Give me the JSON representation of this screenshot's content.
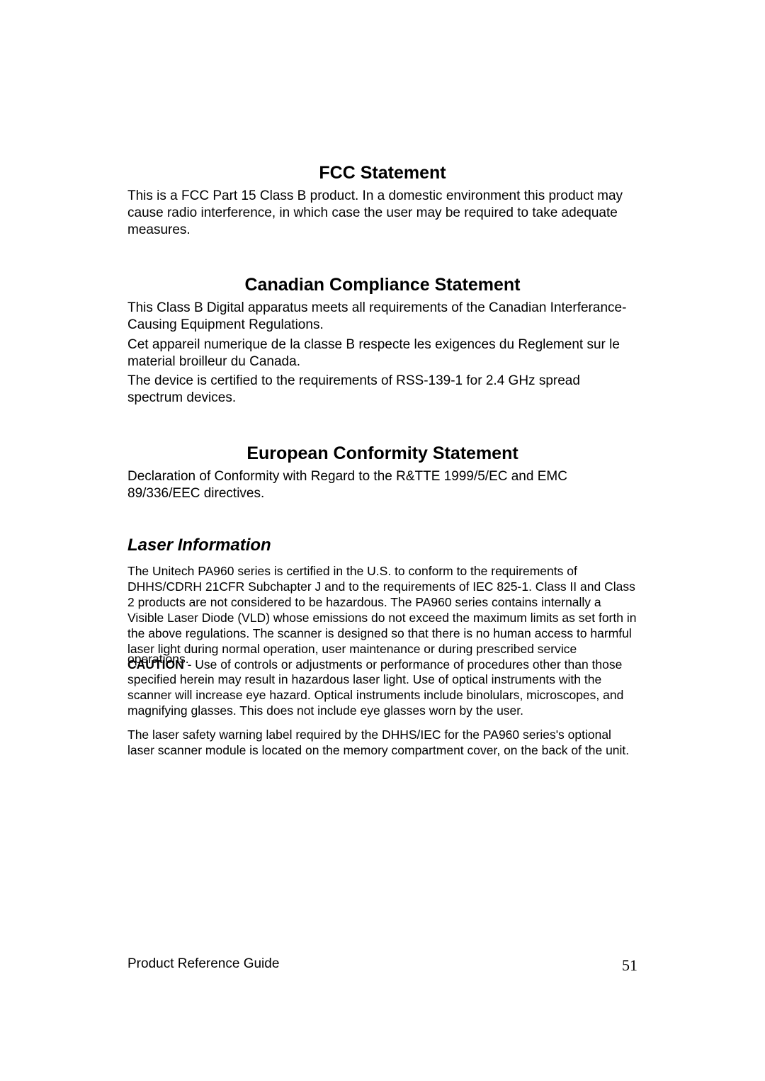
{
  "sections": {
    "fcc": {
      "title": "FCC Statement",
      "body": "This is a FCC Part 15 Class B product.  In a domestic environment this product may cause radio interference, in which case the user may be required to take adequate measures."
    },
    "canadian": {
      "title": "Canadian Compliance Statement",
      "p1": "This Class B Digital apparatus meets all requirements of the Canadian Interferance-Causing Equipment Regulations.",
      "p2": "Cet appareil numerique de la classe B respecte les exigences du Reglement sur le material broilleur du Canada.",
      "p3": "The device is certified to the requirements of RSS-139-1 for 2.4 GHz spread spectrum devices."
    },
    "european": {
      "title": "European Conformity Statement",
      "body": "Declaration of Conformity with Regard to the R&TTE 1999/5/EC and EMC 89/336/EEC directives."
    },
    "laser": {
      "title": "Laser Information",
      "p1": "The Unitech PA960 series is certified in the U.S. to conform to the requirements of DHHS/CDRH 21CFR Subchapter J and to the requirements of IEC 825-1.  Class II and Class 2 products are not considered to be hazardous.  The PA960  series contains internally a Visible Laser Diode (VLD) whose emissions do not exceed the maximum limits as set forth in the above regulations.  The scanner is designed so that there is no human access to harmful laser light during normal operation, user maintenance or during prescribed service",
      "overlap_top": "operations.",
      "caution_label": "CAUTION",
      "caution_rest": " - Use of controls or adjustments or performance of procedures other than those specified herein may result in hazardous laser light.  Use of optical instruments with the scanner will increase eye hazard.  Optical instruments include binolulars, microscopes, and magnifying glasses.  This does not include eye glasses worn by the user.",
      "p3": "The laser safety warning label required by the DHHS/IEC for the PA960 series's optional laser scanner module is located on the memory compartment cover, on the back of the unit."
    }
  },
  "footer": {
    "left": "Product Reference Guide",
    "page": "51"
  }
}
